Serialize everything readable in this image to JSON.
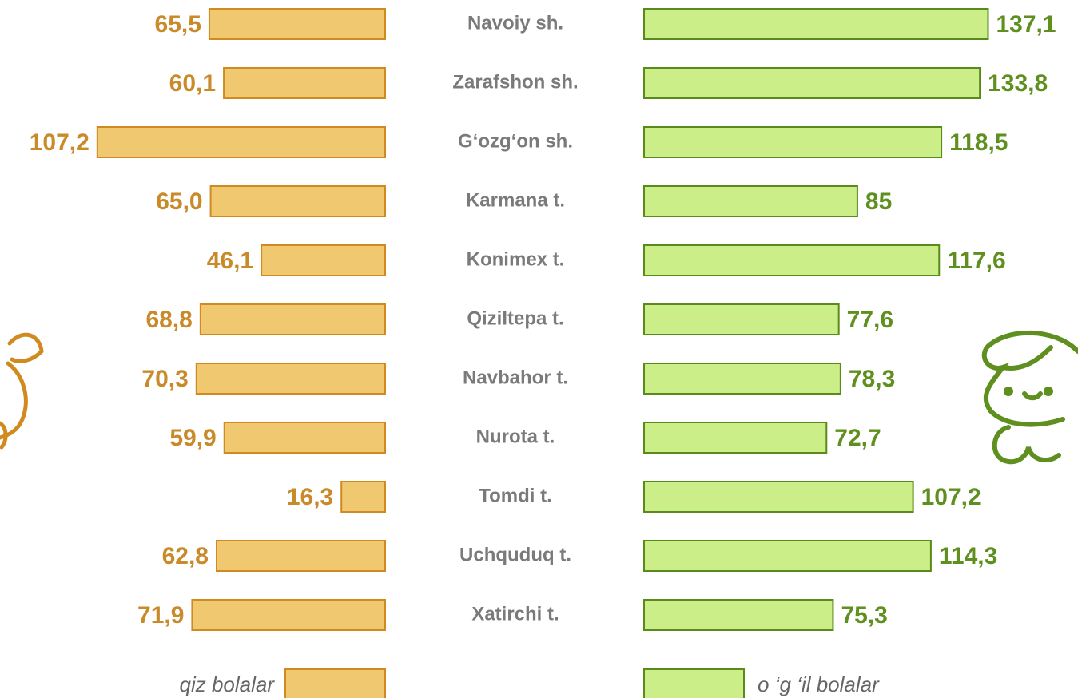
{
  "chart_data": {
    "type": "butterfly-bar",
    "categories": [
      "Navoiy sh.",
      "Zarafshon sh.",
      "G‘ozg‘on sh.",
      "Karmana t.",
      "Konimex t.",
      "Qiziltepa t.",
      "Navbahor t.",
      "Nurota t.",
      "Tomdi t.",
      "Uchquduq t.",
      "Xatirchi t."
    ],
    "series": [
      {
        "name": "qiz bolalar",
        "color": "#f0c870",
        "stroke": "#d08a20",
        "label_color": "#c98a2a",
        "values": [
          65.5,
          60.1,
          107.2,
          65.0,
          46.1,
          68.8,
          70.3,
          59.9,
          16.3,
          62.8,
          71.9
        ],
        "value_labels": [
          "65,5",
          "60,1",
          "107,2",
          "65,0",
          "46,1",
          "68,8",
          "70,3",
          "59,9",
          "16,3",
          "62,8",
          "71,9"
        ]
      },
      {
        "name": "o ‘g ‘il bolalar",
        "color": "#ccee88",
        "stroke": "#5a8a1a",
        "label_color": "#5f8f1f",
        "values": [
          137.1,
          133.8,
          118.5,
          85,
          117.6,
          77.6,
          78.3,
          72.7,
          107.2,
          114.3,
          75.3
        ],
        "value_labels": [
          "137,1",
          "133,8",
          "118,5",
          "85",
          "117,6",
          "77,6",
          "78,3",
          "72,7",
          "107,2",
          "114,3",
          "75,3"
        ]
      }
    ]
  }
}
